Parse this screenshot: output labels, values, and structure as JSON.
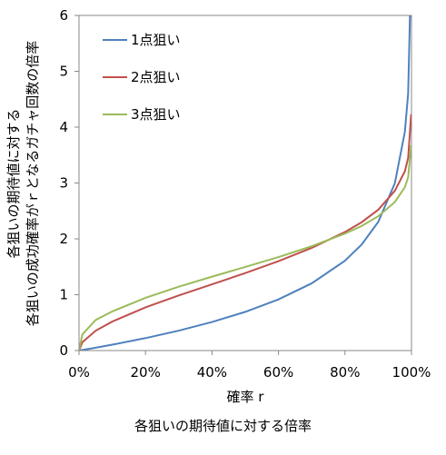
{
  "caption": "各狙いの期待値に対する倍率",
  "chart_data": {
    "type": "line",
    "xlabel": "確率 r",
    "ylabel_lines": [
      "各狙いの期待値に対する",
      "各狙いの成功確率がｒとなるガチャ回数の倍率"
    ],
    "xlim": [
      0,
      1
    ],
    "ylim": [
      0,
      6
    ],
    "x_ticks": [
      0,
      0.2,
      0.4,
      0.6,
      0.8,
      1.0
    ],
    "x_tick_labels": [
      "0%",
      "20%",
      "40%",
      "60%",
      "80%",
      "100%"
    ],
    "y_ticks": [
      0,
      1,
      2,
      3,
      4,
      5,
      6
    ],
    "y_tick_labels": [
      "0",
      "1",
      "2",
      "3",
      "4",
      "5",
      "6"
    ],
    "grid": false,
    "legend_position": "top-left",
    "x": [
      0.0,
      0.01,
      0.05,
      0.1,
      0.2,
      0.3,
      0.4,
      0.5,
      0.6,
      0.7,
      0.8,
      0.85,
      0.9,
      0.95,
      0.98,
      0.99,
      0.999
    ],
    "series": [
      {
        "name": "1点狙い",
        "color": "#4f81bd",
        "values": [
          0.0,
          0.01,
          0.051,
          0.105,
          0.223,
          0.357,
          0.511,
          0.693,
          0.916,
          1.204,
          1.609,
          1.897,
          2.303,
          2.996,
          3.912,
          4.605,
          6.9
        ]
      },
      {
        "name": "2点狙い",
        "color": "#c0504d",
        "values": [
          0.0,
          0.149,
          0.355,
          0.519,
          0.773,
          0.986,
          1.186,
          1.387,
          1.6,
          1.838,
          2.123,
          2.297,
          2.521,
          2.861,
          3.207,
          3.449,
          4.231
        ]
      },
      {
        "name": "3点狙い",
        "color": "#9bbb59",
        "values": [
          0.0,
          0.289,
          0.548,
          0.701,
          0.944,
          1.143,
          1.323,
          1.497,
          1.674,
          1.868,
          2.094,
          2.23,
          2.405,
          2.659,
          2.923,
          3.102,
          3.675
        ]
      }
    ]
  }
}
